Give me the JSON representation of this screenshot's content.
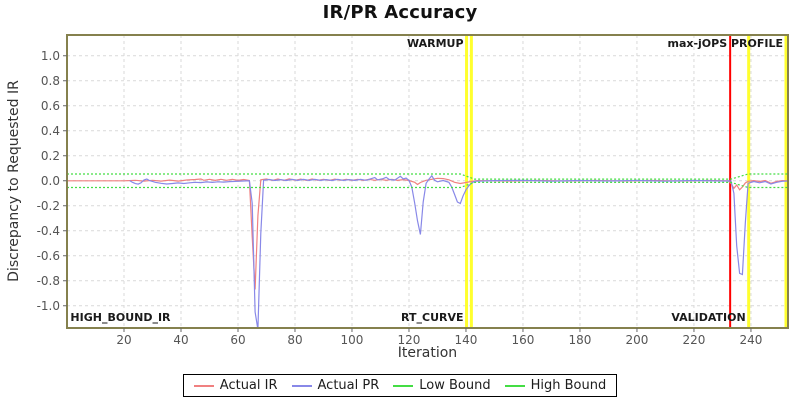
{
  "title": "IR/PR Accuracy",
  "axes": {
    "x_label": "Iteration",
    "y_label": "Discrepancy to Requested IR"
  },
  "legend": {
    "items": [
      {
        "label": "Actual IR",
        "color": "#f08080"
      },
      {
        "label": "Actual PR",
        "color": "#8888e8"
      },
      {
        "label": "Low Bound",
        "color": "#44dd44"
      },
      {
        "label": "High Bound",
        "color": "#44dd44"
      }
    ]
  },
  "colors": {
    "plot_border": "#85814e",
    "gridline": "#d9d9d9",
    "tick": "#666666",
    "tick_label": "#555555",
    "marker_label": "#1a1a1a",
    "marker_yellow": "#ffff2e",
    "marker_red": "#ff0000"
  },
  "chart_data": {
    "type": "line",
    "title": "IR/PR Accuracy",
    "xlabel": "Iteration",
    "ylabel": "Discrepancy to Requested IR",
    "xlim": [
      0,
      253
    ],
    "ylim": [
      -1.178,
      1.166
    ],
    "grid": true,
    "legend_position": "bottom",
    "x_ticks": [
      20,
      40,
      60,
      80,
      100,
      120,
      140,
      160,
      180,
      200,
      220,
      240
    ],
    "y_tick_labels": [
      "1.0",
      "0.8",
      "0.6",
      "0.4",
      "0.2",
      "0.0",
      "-0.2",
      "-0.4",
      "-0.6",
      "-0.8",
      "-1.0"
    ],
    "phase_markers": {
      "vlines": [
        {
          "x": 140.2,
          "color": "#ffff2e",
          "width": 3
        },
        {
          "x": 141.9,
          "color": "#ffff2e",
          "width": 3
        },
        {
          "x": 232.7,
          "color": "#ff0000",
          "width": 2
        },
        {
          "x": 239.2,
          "color": "#ffff2e",
          "width": 3
        },
        {
          "x": 252.3,
          "color": "#ffff2e",
          "width": 3
        }
      ],
      "labels": [
        {
          "text": "HIGH_BOUND_IR",
          "x": 0.5,
          "align": "start",
          "v": "bottom"
        },
        {
          "text": "WARMUP",
          "x": 140.2,
          "align": "end",
          "v": "top"
        },
        {
          "text": "RT_CURVE",
          "x": 140.2,
          "align": "end",
          "v": "bottom"
        },
        {
          "text": "max-jOPS",
          "x": 232.7,
          "align": "end",
          "v": "top"
        },
        {
          "text": "VALIDATION",
          "x": 239.2,
          "align": "end",
          "v": "bottom"
        },
        {
          "text": "PROFILE",
          "x": 252.3,
          "align": "end",
          "v": "top"
        }
      ]
    },
    "series": [
      {
        "name": "Actual IR",
        "color": "#f08080",
        "dash": null,
        "points": [
          [
            0,
            0
          ],
          [
            10,
            0
          ],
          [
            20,
            0
          ],
          [
            24,
            0.004
          ],
          [
            27,
            -0.003
          ],
          [
            30,
            0.004
          ],
          [
            33,
            -0.003
          ],
          [
            36,
            0.005
          ],
          [
            39,
            -0.003
          ],
          [
            42,
            0.006
          ],
          [
            45,
            0.01
          ],
          [
            47,
            0.014
          ],
          [
            48,
            0.004
          ],
          [
            50,
            0.012
          ],
          [
            52,
            0.003
          ],
          [
            54,
            0.012
          ],
          [
            56,
            0.004
          ],
          [
            58,
            0.011
          ],
          [
            60,
            0.003
          ],
          [
            62,
            0.01
          ],
          [
            64,
            0.002
          ],
          [
            65,
            -0.45
          ],
          [
            66,
            -0.87
          ],
          [
            67,
            -0.28
          ],
          [
            68,
            0.008
          ],
          [
            70,
            0.014
          ],
          [
            72,
            0.003
          ],
          [
            74,
            0.014
          ],
          [
            76,
            0.003
          ],
          [
            78,
            0.015
          ],
          [
            80,
            0.004
          ],
          [
            82,
            0.013
          ],
          [
            84,
            0.003
          ],
          [
            86,
            0.014
          ],
          [
            88,
            0.004
          ],
          [
            90,
            0.012
          ],
          [
            92,
            0.003
          ],
          [
            94,
            0.013
          ],
          [
            96,
            0.004
          ],
          [
            98,
            0.012
          ],
          [
            100,
            0.003
          ],
          [
            102,
            0.012
          ],
          [
            104,
            0.003
          ],
          [
            106,
            0.012
          ],
          [
            108,
            0.004
          ],
          [
            110,
            0.011
          ],
          [
            112,
            0.004
          ],
          [
            114,
            0.011
          ],
          [
            116,
            0.003
          ],
          [
            118,
            0.009
          ],
          [
            120,
            0.002
          ],
          [
            122,
            -0.012
          ],
          [
            123,
            -0.03
          ],
          [
            124,
            -0.014
          ],
          [
            126,
            0.004
          ],
          [
            128,
            0.012
          ],
          [
            130,
            0.02
          ],
          [
            132,
            0.017
          ],
          [
            134,
            0.008
          ],
          [
            136,
            -0.012
          ],
          [
            138,
            -0.022
          ],
          [
            140,
            -0.014
          ],
          [
            142,
            -0.005
          ],
          [
            144,
            0.001
          ],
          [
            155,
            -0.002
          ],
          [
            165,
            0.002
          ],
          [
            175,
            -0.002
          ],
          [
            185,
            0.002
          ],
          [
            195,
            -0.002
          ],
          [
            205,
            0.002
          ],
          [
            215,
            -0.002
          ],
          [
            225,
            0.002
          ],
          [
            232,
            0
          ],
          [
            233,
            -0.022
          ],
          [
            234,
            -0.06
          ],
          [
            235,
            -0.034
          ],
          [
            236,
            -0.072
          ],
          [
            237,
            -0.05
          ],
          [
            238,
            -0.018
          ],
          [
            239,
            -0.004
          ],
          [
            241,
            0.001
          ],
          [
            243,
            -0.006
          ],
          [
            245,
            0.002
          ],
          [
            247,
            -0.02
          ],
          [
            249,
            -0.006
          ],
          [
            251,
            0.001
          ],
          [
            253,
            -0.001
          ]
        ]
      },
      {
        "name": "Actual PR",
        "color": "#8888e8",
        "dash": null,
        "points": [
          [
            22,
            0.001
          ],
          [
            23,
            -0.012
          ],
          [
            24,
            -0.023
          ],
          [
            25,
            -0.027
          ],
          [
            26,
            -0.016
          ],
          [
            27,
            0.006
          ],
          [
            28,
            0.014
          ],
          [
            29,
            0.001
          ],
          [
            31,
            -0.012
          ],
          [
            33,
            -0.02
          ],
          [
            35,
            -0.026
          ],
          [
            37,
            -0.022
          ],
          [
            39,
            -0.017
          ],
          [
            41,
            -0.022
          ],
          [
            43,
            -0.016
          ],
          [
            45,
            -0.012
          ],
          [
            47,
            -0.015
          ],
          [
            49,
            -0.009
          ],
          [
            51,
            -0.013
          ],
          [
            53,
            -0.008
          ],
          [
            55,
            -0.011
          ],
          [
            57,
            -0.007
          ],
          [
            59,
            -0.005
          ],
          [
            61,
            -0.003
          ],
          [
            63,
            -0.001
          ],
          [
            64,
            0
          ],
          [
            65,
            -0.18
          ],
          [
            66,
            -1.05
          ],
          [
            67,
            -1.19
          ],
          [
            68,
            -0.42
          ],
          [
            69,
            0.004
          ],
          [
            71,
            0.01
          ],
          [
            73,
            0.002
          ],
          [
            75,
            0.009
          ],
          [
            77,
            0.002
          ],
          [
            79,
            0.011
          ],
          [
            81,
            0.003
          ],
          [
            83,
            0.011
          ],
          [
            85,
            0.003
          ],
          [
            87,
            0.011
          ],
          [
            89,
            0.003
          ],
          [
            91,
            0.009
          ],
          [
            93,
            0.002
          ],
          [
            95,
            0.011
          ],
          [
            97,
            0.003
          ],
          [
            99,
            0.009
          ],
          [
            101,
            0.003
          ],
          [
            103,
            0.011
          ],
          [
            105,
            0.004
          ],
          [
            107,
            0.019
          ],
          [
            108,
            0.026
          ],
          [
            109,
            0.007
          ],
          [
            111,
            0.017
          ],
          [
            112,
            0.028
          ],
          [
            113,
            0.011
          ],
          [
            115,
            0.005
          ],
          [
            117,
            0.036
          ],
          [
            118,
            0.014
          ],
          [
            119,
            0.022
          ],
          [
            120,
            0.002
          ],
          [
            121,
            -0.05
          ],
          [
            122,
            -0.18
          ],
          [
            123,
            -0.32
          ],
          [
            124,
            -0.43
          ],
          [
            125,
            -0.17
          ],
          [
            126,
            -0.02
          ],
          [
            127,
            0.012
          ],
          [
            128,
            0.04
          ],
          [
            129,
            0.004
          ],
          [
            130,
            -0.008
          ],
          [
            132,
            0.002
          ],
          [
            134,
            -0.012
          ],
          [
            135,
            -0.05
          ],
          [
            136,
            -0.11
          ],
          [
            137,
            -0.17
          ],
          [
            138,
            -0.182
          ],
          [
            139,
            -0.12
          ],
          [
            140,
            -0.072
          ],
          [
            141,
            -0.04
          ],
          [
            142,
            -0.018
          ],
          [
            143,
            -0.004
          ],
          [
            150,
            0.001
          ],
          [
            160,
            0.003
          ],
          [
            170,
            -0.003
          ],
          [
            180,
            0.002
          ],
          [
            190,
            -0.002
          ],
          [
            200,
            0.002
          ],
          [
            210,
            -0.003
          ],
          [
            220,
            0.002
          ],
          [
            230,
            -0.002
          ],
          [
            233,
            -0.001
          ],
          [
            234,
            -0.1
          ],
          [
            235,
            -0.52
          ],
          [
            236,
            -0.74
          ],
          [
            237,
            -0.75
          ],
          [
            238,
            -0.34
          ],
          [
            239,
            -0.02
          ],
          [
            241,
            -0.006
          ],
          [
            243,
            -0.016
          ],
          [
            245,
            -0.006
          ],
          [
            247,
            -0.026
          ],
          [
            249,
            -0.012
          ],
          [
            251,
            -0.004
          ],
          [
            253,
            -0.002
          ]
        ]
      },
      {
        "name": "Low Bound",
        "color": "#44dd44",
        "dash": "2 2",
        "points": [
          [
            0,
            -0.054
          ],
          [
            138,
            -0.054
          ],
          [
            143,
            -0.013
          ],
          [
            233,
            -0.013
          ],
          [
            239,
            -0.054
          ],
          [
            253,
            -0.054
          ]
        ]
      },
      {
        "name": "High Bound",
        "color": "#44dd44",
        "dash": "2 2",
        "points": [
          [
            0,
            0.054
          ],
          [
            138,
            0.054
          ],
          [
            143,
            0.013
          ],
          [
            233,
            0.013
          ],
          [
            239,
            0.054
          ],
          [
            253,
            0.054
          ]
        ]
      }
    ]
  }
}
